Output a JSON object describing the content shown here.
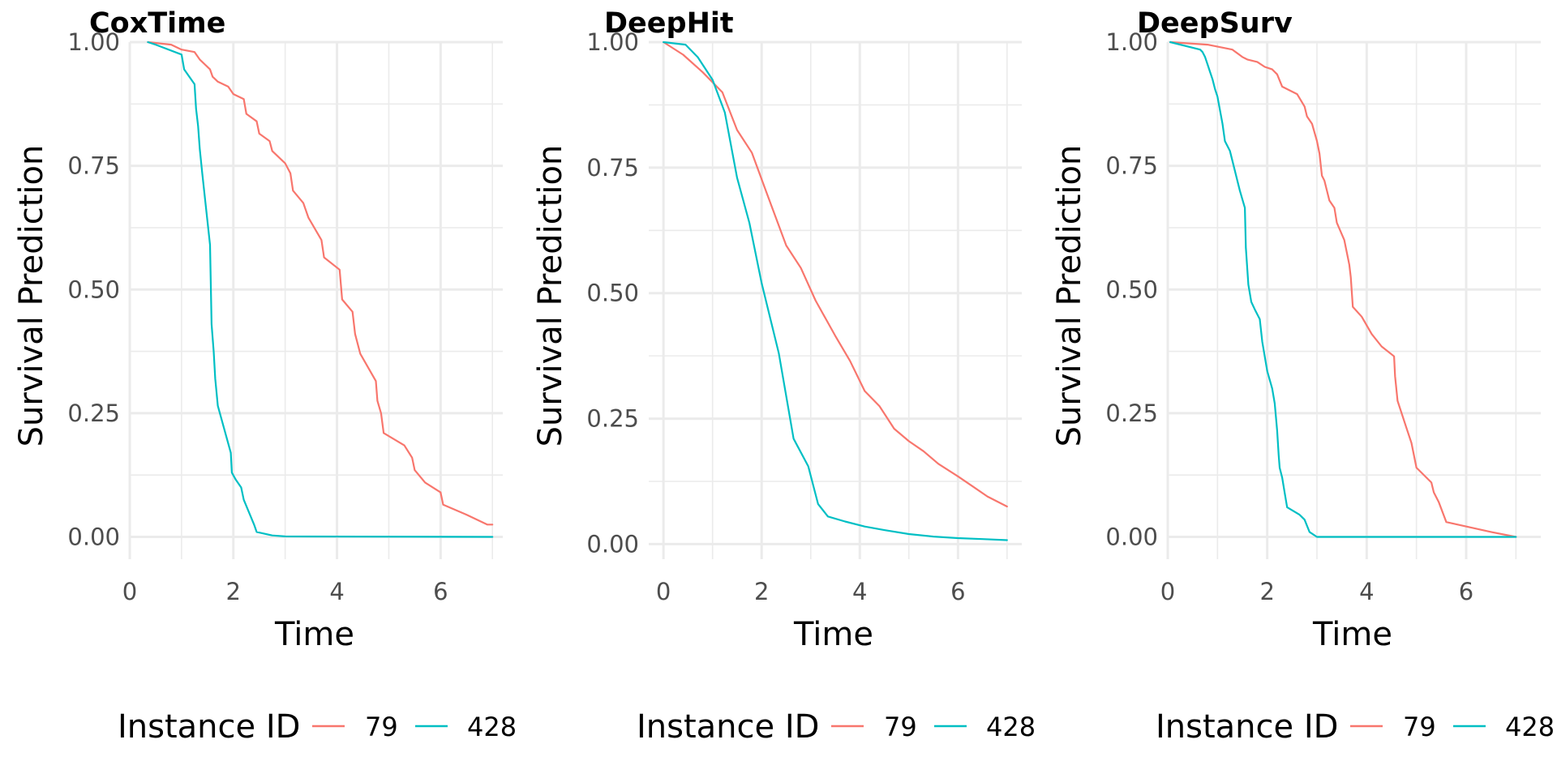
{
  "chart_data": [
    {
      "type": "line",
      "title": "CoxTime",
      "xlabel": "Time",
      "ylabel": "Survival Prediction",
      "xlim": [
        0,
        7.2
      ],
      "ylim": [
        -0.045,
        1.0
      ],
      "x_ticks": [
        0,
        2,
        4,
        6
      ],
      "x_tick_labels": [
        "0",
        "2",
        "4",
        "6"
      ],
      "y_ticks": [
        0,
        0.25,
        0.5,
        0.75,
        1.0
      ],
      "y_tick_labels": [
        "0.00",
        "0.25",
        "0.50",
        "0.75",
        "1.00"
      ],
      "grid": true,
      "legend": {
        "title": "Instance ID",
        "position": "bottom"
      },
      "series": [
        {
          "name": "79",
          "color": "#F8766D",
          "step": false,
          "x": [
            0.35,
            0.8,
            1.0,
            1.25,
            1.35,
            1.55,
            1.6,
            1.7,
            1.9,
            2.0,
            2.2,
            2.25,
            2.45,
            2.5,
            2.7,
            2.75,
            3.0,
            3.1,
            3.15,
            3.35,
            3.45,
            3.7,
            3.75,
            4.05,
            4.1,
            4.3,
            4.35,
            4.45,
            4.75,
            4.78,
            4.85,
            4.9,
            5.3,
            5.45,
            5.5,
            5.7,
            6.0,
            6.05,
            6.5,
            6.9,
            7.0
          ],
          "y": [
            1.0,
            0.995,
            0.985,
            0.98,
            0.965,
            0.945,
            0.93,
            0.92,
            0.91,
            0.895,
            0.885,
            0.855,
            0.84,
            0.815,
            0.8,
            0.78,
            0.755,
            0.735,
            0.7,
            0.675,
            0.645,
            0.6,
            0.565,
            0.54,
            0.48,
            0.455,
            0.41,
            0.37,
            0.315,
            0.275,
            0.25,
            0.21,
            0.185,
            0.16,
            0.135,
            0.11,
            0.09,
            0.065,
            0.045,
            0.025,
            0.025
          ]
        },
        {
          "name": "428",
          "color": "#00BFC4",
          "step": false,
          "x": [
            0.35,
            0.5,
            1.0,
            1.05,
            1.25,
            1.28,
            1.32,
            1.35,
            1.4,
            1.55,
            1.58,
            1.62,
            1.65,
            1.7,
            1.95,
            1.97,
            2.05,
            2.15,
            2.2,
            2.4,
            2.45,
            2.75,
            3.0,
            7.0
          ],
          "y": [
            1.0,
            0.995,
            0.975,
            0.945,
            0.915,
            0.865,
            0.83,
            0.785,
            0.735,
            0.59,
            0.43,
            0.375,
            0.32,
            0.265,
            0.17,
            0.13,
            0.115,
            0.1,
            0.075,
            0.025,
            0.01,
            0.003,
            0.001,
            0.0
          ]
        }
      ]
    },
    {
      "type": "line",
      "title": "DeepHit",
      "xlabel": "Time",
      "ylabel": "Survival Prediction",
      "xlim": [
        -0.3,
        7.3
      ],
      "ylim": [
        -0.03,
        1.0
      ],
      "x_ticks": [
        0,
        2,
        4,
        6
      ],
      "x_tick_labels": [
        "0",
        "2",
        "4",
        "6"
      ],
      "y_ticks": [
        0,
        0.25,
        0.5,
        0.75,
        1.0
      ],
      "y_tick_labels": [
        "0.00",
        "0.25",
        "0.50",
        "0.75",
        "1.00"
      ],
      "grid": true,
      "legend": {
        "title": "Instance ID",
        "position": "bottom"
      },
      "series": [
        {
          "name": "79",
          "color": "#F8766D",
          "step": false,
          "x": [
            0.0,
            0.4,
            0.8,
            1.2,
            1.5,
            1.8,
            2.1,
            2.5,
            2.8,
            3.1,
            3.5,
            3.8,
            4.1,
            4.4,
            4.7,
            5.0,
            5.3,
            5.6,
            6.0,
            6.3,
            6.6,
            7.0
          ],
          "y": [
            1.0,
            0.975,
            0.94,
            0.9,
            0.825,
            0.78,
            0.7,
            0.595,
            0.55,
            0.485,
            0.415,
            0.365,
            0.305,
            0.275,
            0.23,
            0.205,
            0.185,
            0.16,
            0.135,
            0.115,
            0.095,
            0.075
          ]
        },
        {
          "name": "428",
          "color": "#00BFC4",
          "step": false,
          "x": [
            0.0,
            0.45,
            0.7,
            1.0,
            1.25,
            1.5,
            1.75,
            2.0,
            2.35,
            2.65,
            2.95,
            3.15,
            3.35,
            3.7,
            4.1,
            4.5,
            5.0,
            5.5,
            6.0,
            6.5,
            7.0
          ],
          "y": [
            1.0,
            0.995,
            0.97,
            0.925,
            0.86,
            0.73,
            0.64,
            0.52,
            0.38,
            0.21,
            0.155,
            0.08,
            0.055,
            0.045,
            0.035,
            0.028,
            0.02,
            0.015,
            0.012,
            0.01,
            0.008
          ]
        }
      ]
    },
    {
      "type": "line",
      "title": "DeepSurv",
      "xlabel": "Time",
      "ylabel": "Survival Prediction",
      "xlim": [
        0,
        7.5
      ],
      "ylim": [
        -0.045,
        1.0
      ],
      "x_ticks": [
        0,
        2,
        4,
        6
      ],
      "x_tick_labels": [
        "0",
        "2",
        "4",
        "6"
      ],
      "y_ticks": [
        0,
        0.25,
        0.5,
        0.75,
        1.0
      ],
      "y_tick_labels": [
        "0.00",
        "0.25",
        "0.50",
        "0.75",
        "1.00"
      ],
      "grid": true,
      "legend": {
        "title": "Instance ID",
        "position": "bottom"
      },
      "series": [
        {
          "name": "79",
          "color": "#F8766D",
          "step": false,
          "x": [
            0.05,
            0.8,
            1.3,
            1.5,
            1.6,
            1.8,
            1.95,
            2.1,
            2.2,
            2.3,
            2.6,
            2.75,
            2.8,
            2.9,
            3.0,
            3.05,
            3.1,
            3.15,
            3.25,
            3.35,
            3.4,
            3.55,
            3.65,
            3.68,
            3.72,
            3.9,
            4.1,
            4.3,
            4.55,
            4.57,
            4.62,
            4.8,
            4.9,
            5.0,
            5.3,
            5.35,
            5.45,
            5.6,
            6.5,
            7.0
          ],
          "y": [
            1.0,
            0.995,
            0.985,
            0.97,
            0.965,
            0.96,
            0.95,
            0.945,
            0.935,
            0.91,
            0.895,
            0.87,
            0.85,
            0.835,
            0.8,
            0.775,
            0.73,
            0.72,
            0.68,
            0.665,
            0.635,
            0.6,
            0.55,
            0.525,
            0.465,
            0.445,
            0.41,
            0.385,
            0.365,
            0.325,
            0.275,
            0.22,
            0.19,
            0.14,
            0.11,
            0.09,
            0.07,
            0.03,
            0.01,
            0.0
          ]
        },
        {
          "name": "428",
          "color": "#00BFC4",
          "step": false,
          "x": [
            0.05,
            0.65,
            0.7,
            0.75,
            0.8,
            0.85,
            0.9,
            0.95,
            1.0,
            1.1,
            1.15,
            1.25,
            1.35,
            1.45,
            1.55,
            1.57,
            1.62,
            1.68,
            1.75,
            1.85,
            1.9,
            2.0,
            2.1,
            2.15,
            2.2,
            2.23,
            2.25,
            2.3,
            2.35,
            2.4,
            2.65,
            2.75,
            2.85,
            3.0,
            3.5,
            7.0
          ],
          "y": [
            1.0,
            0.985,
            0.98,
            0.97,
            0.955,
            0.94,
            0.925,
            0.905,
            0.89,
            0.835,
            0.8,
            0.78,
            0.74,
            0.7,
            0.665,
            0.585,
            0.51,
            0.475,
            0.46,
            0.44,
            0.395,
            0.335,
            0.3,
            0.27,
            0.215,
            0.165,
            0.14,
            0.12,
            0.09,
            0.06,
            0.045,
            0.035,
            0.01,
            0.0,
            0.0,
            0.0
          ]
        }
      ]
    }
  ]
}
